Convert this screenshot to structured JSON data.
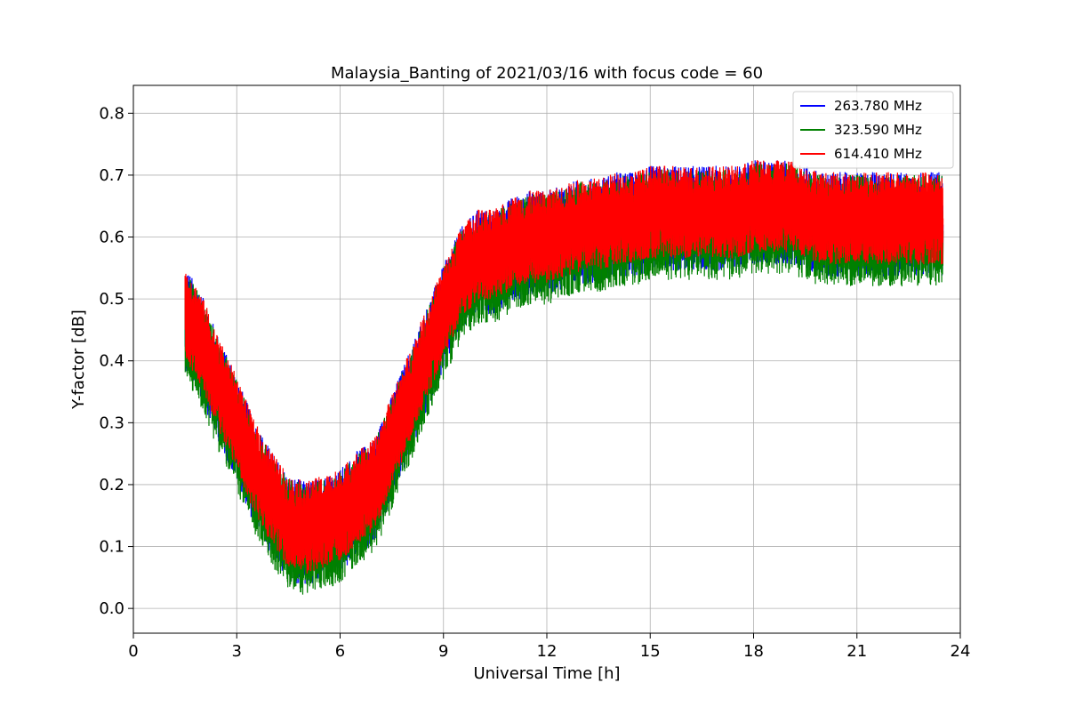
{
  "chart_data": {
    "type": "line",
    "title": "Malaysia_Banting of 2021/03/16 with focus code = 60",
    "xlabel": "Universal Time [h]",
    "ylabel": "Y-factor [dB]",
    "xlim": [
      0,
      24
    ],
    "ylim": [
      -0.04,
      0.845
    ],
    "xticks": [
      0,
      3,
      6,
      9,
      12,
      15,
      18,
      21,
      24
    ],
    "xtick_labels": [
      "0",
      "3",
      "6",
      "9",
      "12",
      "15",
      "18",
      "21",
      "24"
    ],
    "yticks": [
      0.0,
      0.1,
      0.2,
      0.3,
      0.4,
      0.5,
      0.6,
      0.7,
      0.8
    ],
    "ytick_labels": [
      "0.0",
      "0.1",
      "0.2",
      "0.3",
      "0.4",
      "0.5",
      "0.6",
      "0.7",
      "0.8"
    ],
    "grid": true,
    "legend_position": "top-right",
    "series": [
      {
        "name": "263.780 MHz",
        "color": "#0000ff",
        "x": [
          1.5,
          2.0,
          2.5,
          3.0,
          3.5,
          4.0,
          4.5,
          5.0,
          5.5,
          6.0,
          6.5,
          7.0,
          7.5,
          8.0,
          8.5,
          9.0,
          9.5,
          10.0,
          10.5,
          11.0,
          11.5,
          12.0,
          12.5,
          13.0,
          13.5,
          14.0,
          14.5,
          15.0,
          15.5,
          16.0,
          16.5,
          17.0,
          17.5,
          18.0,
          18.5,
          19.0,
          19.5,
          20.0,
          20.5,
          21.0,
          21.5,
          22.0,
          22.5,
          23.0,
          23.5
        ],
        "y": [
          0.47,
          0.42,
          0.35,
          0.29,
          0.22,
          0.17,
          0.13,
          0.12,
          0.13,
          0.14,
          0.17,
          0.19,
          0.26,
          0.33,
          0.4,
          0.47,
          0.53,
          0.56,
          0.56,
          0.58,
          0.59,
          0.59,
          0.6,
          0.61,
          0.61,
          0.62,
          0.62,
          0.63,
          0.63,
          0.63,
          0.63,
          0.63,
          0.63,
          0.64,
          0.64,
          0.64,
          0.63,
          0.62,
          0.62,
          0.62,
          0.62,
          0.62,
          0.62,
          0.62,
          0.62
        ]
      },
      {
        "name": "323.590 MHz",
        "color": "#008000",
        "x": [
          1.5,
          2.0,
          2.5,
          3.0,
          3.5,
          4.0,
          4.5,
          5.0,
          5.5,
          6.0,
          6.5,
          7.0,
          7.5,
          8.0,
          8.5,
          9.0,
          9.5,
          10.0,
          10.5,
          11.0,
          11.5,
          12.0,
          12.5,
          13.0,
          13.5,
          14.0,
          14.5,
          15.0,
          15.5,
          16.0,
          16.5,
          17.0,
          17.5,
          18.0,
          18.5,
          19.0,
          19.5,
          20.0,
          20.5,
          21.0,
          21.5,
          22.0,
          22.5,
          23.0,
          23.5
        ],
        "y": [
          0.46,
          0.41,
          0.34,
          0.28,
          0.21,
          0.16,
          0.12,
          0.11,
          0.12,
          0.13,
          0.16,
          0.18,
          0.25,
          0.32,
          0.39,
          0.46,
          0.52,
          0.55,
          0.55,
          0.57,
          0.58,
          0.58,
          0.59,
          0.6,
          0.6,
          0.61,
          0.61,
          0.62,
          0.62,
          0.62,
          0.62,
          0.62,
          0.62,
          0.63,
          0.63,
          0.63,
          0.62,
          0.61,
          0.61,
          0.61,
          0.61,
          0.61,
          0.61,
          0.61,
          0.61
        ]
      },
      {
        "name": "614.410 MHz",
        "color": "#ff0000",
        "x": [
          1.5,
          2.0,
          2.5,
          3.0,
          3.5,
          4.0,
          4.5,
          5.0,
          5.5,
          6.0,
          6.5,
          7.0,
          7.5,
          8.0,
          8.5,
          9.0,
          9.5,
          10.0,
          10.5,
          11.0,
          11.5,
          12.0,
          12.5,
          13.0,
          13.5,
          14.0,
          14.5,
          15.0,
          15.5,
          16.0,
          16.5,
          17.0,
          17.5,
          18.0,
          18.5,
          19.0,
          19.5,
          20.0,
          20.5,
          21.0,
          21.5,
          22.0,
          22.5,
          23.0,
          23.5
        ],
        "y": [
          0.48,
          0.43,
          0.36,
          0.3,
          0.23,
          0.18,
          0.14,
          0.13,
          0.14,
          0.15,
          0.18,
          0.2,
          0.27,
          0.34,
          0.41,
          0.48,
          0.54,
          0.57,
          0.57,
          0.59,
          0.6,
          0.6,
          0.61,
          0.62,
          0.62,
          0.63,
          0.63,
          0.64,
          0.64,
          0.64,
          0.64,
          0.64,
          0.64,
          0.65,
          0.65,
          0.65,
          0.64,
          0.63,
          0.63,
          0.63,
          0.63,
          0.63,
          0.63,
          0.63,
          0.63
        ]
      }
    ]
  }
}
